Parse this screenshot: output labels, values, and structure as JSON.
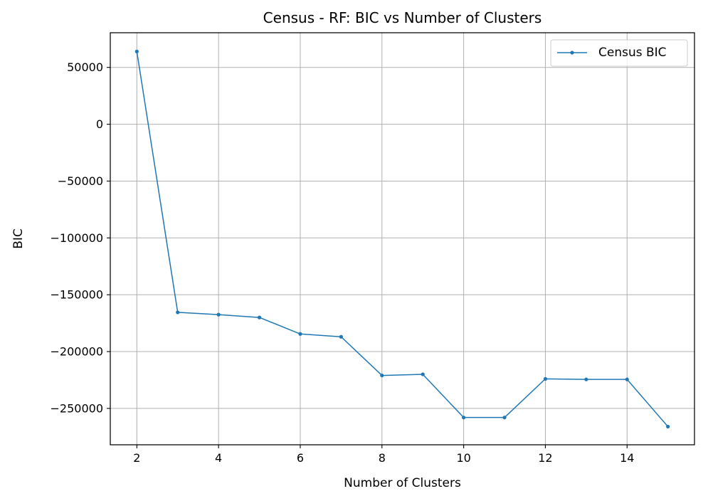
{
  "chart_data": {
    "type": "line",
    "title": "Census - RF: BIC vs Number of Clusters",
    "xlabel": "Number of Clusters",
    "ylabel": "BIC",
    "xlim": [
      1.35,
      15.65
    ],
    "ylim": [
      -282000,
      80500
    ],
    "xticks": [
      2,
      4,
      6,
      8,
      10,
      12,
      14
    ],
    "yticks": [
      50000,
      0,
      -50000,
      -100000,
      -150000,
      -200000,
      -250000
    ],
    "ytick_labels": [
      "50000",
      "0",
      "−50000",
      "−100000",
      "−150000",
      "−200000",
      "−250000"
    ],
    "grid": true,
    "legend_position": "upper right",
    "series": [
      {
        "name": "Census BIC",
        "color": "#1f77b4",
        "marker": "circle",
        "x": [
          2,
          3,
          4,
          5,
          6,
          7,
          8,
          9,
          10,
          11,
          12,
          13,
          14,
          15
        ],
        "y": [
          64000,
          -165500,
          -167500,
          -170000,
          -184500,
          -187000,
          -221000,
          -220000,
          -258000,
          -258000,
          -224000,
          -224500,
          -224500,
          -266000
        ]
      }
    ]
  }
}
